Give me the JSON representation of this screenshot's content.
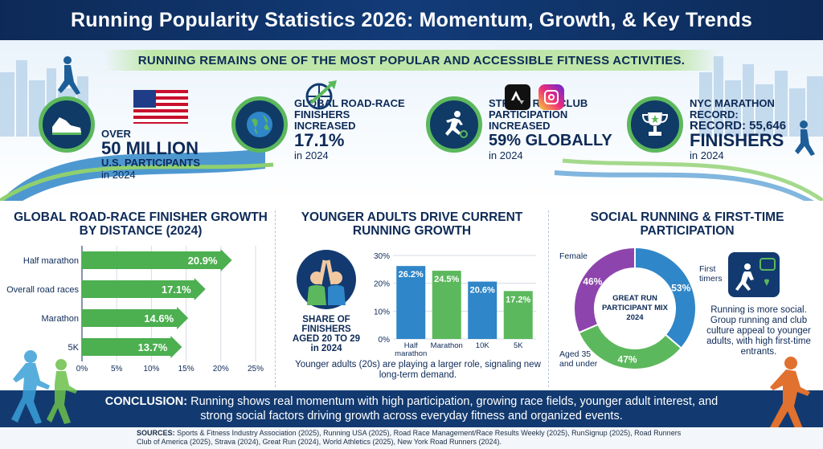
{
  "title": "Running Popularity Statistics 2026: Momentum, Growth, & Key Trends",
  "banner": "RUNNING REMAINS ONE OF THE MOST POPULAR AND ACCESSIBLE FITNESS ACTIVITIES.",
  "stats": [
    {
      "icon": "shoe-icon",
      "line1": "OVER",
      "big": "50 MILLION",
      "line2": "U.S. PARTICIPANTS",
      "year": "in 2024"
    },
    {
      "icon": "globe-icon",
      "line1": "GLOBAL ROAD-RACE",
      "line2": "FINISHERS",
      "line3": "INCREASED",
      "big": "17.1%",
      "year": "in 2024"
    },
    {
      "icon": "runner-icon",
      "line1": "STRAVA RUN-CLUB",
      "line2": "PARTICIPATION",
      "line3": "INCREASED",
      "big": "59% GLOBALLY",
      "year": "in 2024"
    },
    {
      "icon": "trophy-icon",
      "line1": "NYC MARATHON",
      "line2": "RECORD:",
      "line3": "RECORD: 55,646",
      "big": "FINISHERS",
      "year": "in 2024"
    }
  ],
  "chart_data": [
    {
      "type": "bar",
      "orientation": "horizontal",
      "title": "GLOBAL ROAD-RACE FINISHER GROWTH BY DISTANCE (2024)",
      "categories": [
        "Half marathon",
        "Overall road races",
        "Marathon",
        "5K"
      ],
      "values": [
        20.9,
        17.1,
        14.6,
        13.7
      ],
      "value_labels": [
        "20.9%",
        "17.1%",
        "14.6%",
        "13.7%"
      ],
      "xlim": [
        0,
        25
      ],
      "xticks": [
        "0%",
        "5%",
        "10%",
        "15%",
        "20%",
        "25%"
      ],
      "color": "#4caf50"
    },
    {
      "type": "bar",
      "title": "YOUNGER ADULTS DRIVE CURRENT RUNNING GROWTH",
      "subtitle": "SHARE OF FINISHERS AGED 20 TO 29 in 2024",
      "categories": [
        "Half marathon",
        "Marathon",
        "10K",
        "5K"
      ],
      "values": [
        26.2,
        24.5,
        20.6,
        17.2
      ],
      "value_labels": [
        "26.2%",
        "24.5%",
        "20.6%",
        "17.2%"
      ],
      "colors": [
        "#2f86c8",
        "#5cb85c",
        "#2f86c8",
        "#5cb85c"
      ],
      "ylim": [
        0,
        30
      ],
      "yticks": [
        "0%",
        "10%",
        "20%",
        "30%"
      ],
      "caption": "Younger adults (20s) are playing a larger role, signaling new long-term demand."
    },
    {
      "type": "pie",
      "donut": true,
      "title": "SOCIAL RUNNING & FIRST-TIME PARTICIPATION",
      "center_label": "GREAT RUN PARTICIPANT MIX 2024",
      "slices": [
        {
          "label": "First timers",
          "value": 53,
          "display": "53%",
          "color": "#2f86c8"
        },
        {
          "label": "Aged 35 and under",
          "value": 47,
          "display": "47%",
          "color": "#5cb85c"
        },
        {
          "label": "Female",
          "value": 46,
          "display": "46%",
          "color": "#8e44ad"
        }
      ],
      "note": "Running is more social. Group running and club culture appeal to younger adults, with high first-time entrants."
    }
  ],
  "conclusion_label": "CONCLUSION:",
  "conclusion_text": "Running shows real momentum with high participation, growing race fields, younger adult interest, and strong social factors driving growth across everyday fitness and organized events.",
  "sources_label": "SOURCES:",
  "sources_text": "Sports & Fitness Industry Association (2025), Running USA (2025), Road Race Management/Race Results Weekly (2025), RunSignup (2025), Road Runners Club of America (2025), Strava (2024), Great Run (2024), World Athletics (2025), New York Road Runners (2024).",
  "colors": {
    "navy": "#0d2a57",
    "green": "#4caf50",
    "blue": "#2f86c8",
    "purple": "#8e44ad"
  }
}
